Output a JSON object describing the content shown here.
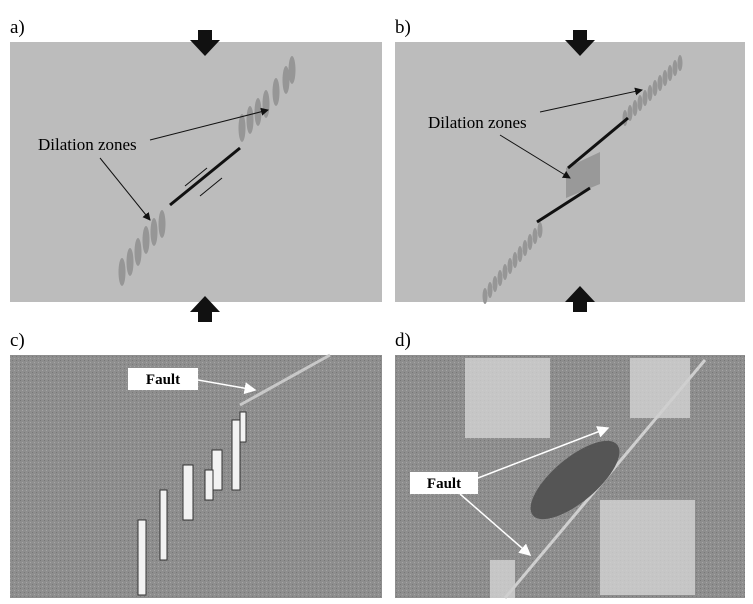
{
  "panels": [
    {
      "label": "a)",
      "annotation": "Dilation zones"
    },
    {
      "label": "b)",
      "annotation": "Dilation zones"
    },
    {
      "label": "c)",
      "annotation": "Fault"
    },
    {
      "label": "d)",
      "annotation": "Fault"
    }
  ]
}
